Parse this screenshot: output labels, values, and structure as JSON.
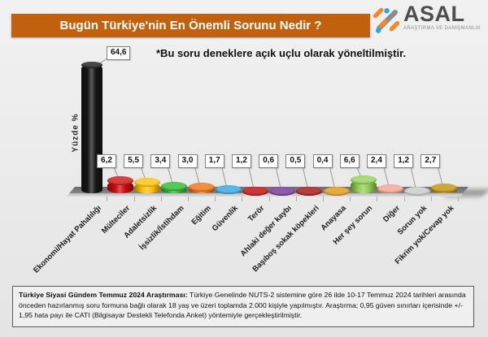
{
  "title": "Bugün Türkiye'nin En Önemli Sorunu Nedir ?",
  "logo": {
    "name": "ASAL",
    "subtitle": "ARAŞTIRMA VE DANIŞMANLIK"
  },
  "note": "*Bu soru deneklere açık uçlu olarak yöneltilmiştir.",
  "chart_data": {
    "type": "bar",
    "style": "3d-cylinder",
    "title": "Bugün Türkiye'nin En Önemli Sorunu Nedir ?",
    "ylabel": "Yüzde %",
    "xlabel": "",
    "ylim": [
      0,
      70
    ],
    "legend": false,
    "grid": false,
    "categories": [
      "Ekonomi/Hayat Pahalılığı",
      "Mülteciler",
      "Adaletsizlik",
      "İşsizlik/İstihdam",
      "Eğitim",
      "Güvenlik",
      "Terör",
      "Ahlaki değer kaybı",
      "Başıboş sokak köpekleri",
      "Anayasa",
      "Her şey sorun",
      "Diğer",
      "Sorun yok",
      "Fikrim yok/Cevap yok"
    ],
    "values": [
      64.6,
      6.2,
      5.5,
      3.4,
      3.0,
      1.7,
      1.2,
      0.6,
      0.5,
      0.4,
      6.6,
      2.4,
      1.2,
      2.7
    ],
    "value_labels": [
      "64,6",
      "6,2",
      "5,5",
      "3,4",
      "3,0",
      "1,7",
      "1,2",
      "0,6",
      "0,5",
      "0,4",
      "6,6",
      "2,4",
      "1,2",
      "2,7"
    ],
    "bar_colors": [
      "#161616",
      "#CC0A0A",
      "#FFC000",
      "#2CB42C",
      "#ED6E0C",
      "#2BA3DD",
      "#BE0000",
      "#6B2F93",
      "#9C0A0A",
      "#E0930E",
      "#8FCF52",
      "#F1A191",
      "#C6C6C6",
      "#BD8F07"
    ]
  },
  "footer": {
    "bold_label": "Türkiye Siyasi Gündem Temmuz 2024 Araştırması:",
    "text": "Türkiye Genelinde NUTS-2 sistemine göre 26 ilde 10-17 Temmuz 2024 tarihleri arasında önceden hazırlanmış soru formuna bağlı olarak 18 yaş ve üzeri toplamda 2.000 kişiyle yapılmıştır. Araştırma; 0,95 güven sınırları içerisinde +/- 1,95 hata payı ile CATI (Bilgisayar Destekli Telefonda Anket) yöntemiyle gerçekleştirilmiştir."
  },
  "colors": {
    "title_bar": "#C2610D",
    "title_text": "#FFFFFF",
    "logo_orange": "#F18A2B",
    "logo_gray": "#8C8C8C",
    "logo_blue": "#29ABE2",
    "floor": "#7B7B7B",
    "background": "#EBEBEB"
  }
}
